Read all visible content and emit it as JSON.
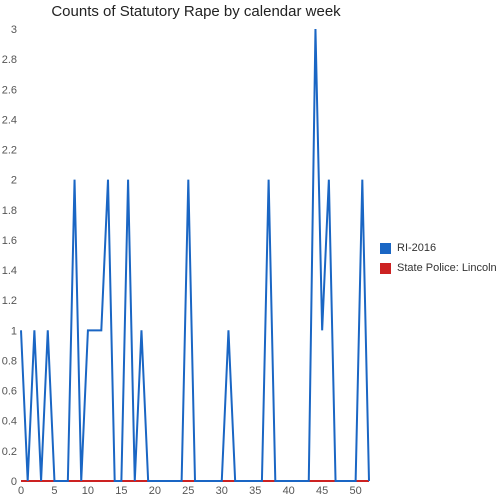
{
  "chart_data": {
    "type": "line",
    "title": "Counts of Statutory Rape by calendar week",
    "xlim": [
      0,
      52
    ],
    "ylim": [
      0,
      3
    ],
    "x_ticks": [
      0,
      5,
      10,
      15,
      20,
      25,
      30,
      35,
      40,
      45,
      50
    ],
    "y_ticks": [
      0,
      0.2,
      0.4,
      0.6,
      0.8,
      1,
      1.2,
      1.4,
      1.6,
      1.8,
      2,
      2.2,
      2.4,
      2.6,
      2.8,
      3
    ],
    "x_tick_labels": [
      "0",
      "5",
      "10",
      "15",
      "20",
      "25",
      "30",
      "35",
      "40",
      "45",
      "50"
    ],
    "y_tick_labels": [
      "0",
      "0.2",
      "0.4",
      "0.6",
      "0.8",
      "1",
      "1.2",
      "1.4",
      "1.6",
      "1.8",
      "2",
      "2.2",
      "2.4",
      "2.6",
      "2.8",
      "3"
    ],
    "grid": false,
    "legend_position": "right",
    "x": [
      0,
      1,
      2,
      3,
      4,
      5,
      6,
      7,
      8,
      9,
      10,
      11,
      12,
      13,
      14,
      15,
      16,
      17,
      18,
      19,
      20,
      21,
      22,
      23,
      24,
      25,
      26,
      27,
      28,
      29,
      30,
      31,
      32,
      33,
      34,
      35,
      36,
      37,
      38,
      39,
      40,
      41,
      42,
      43,
      44,
      45,
      46,
      47,
      48,
      49,
      50,
      51,
      52
    ],
    "series": [
      {
        "name": "RI-2016",
        "color": "#1a66c4",
        "values": [
          1,
          0,
          1,
          0,
          1,
          0,
          0,
          0,
          2,
          0,
          1,
          1,
          1,
          2,
          0,
          0,
          2,
          0,
          1,
          0,
          0,
          0,
          0,
          0,
          0,
          2,
          0,
          0,
          0,
          0,
          0,
          1,
          0,
          0,
          0,
          0,
          0,
          2,
          0,
          0,
          0,
          0,
          0,
          0,
          3,
          1,
          2,
          0,
          0,
          0,
          0,
          2,
          0
        ]
      },
      {
        "name": "State Police: Lincoln",
        "color": "#cc2222",
        "values": [
          0,
          0,
          0,
          0,
          0,
          0,
          0,
          0,
          0,
          0,
          0,
          0,
          0,
          0,
          0,
          0,
          0,
          0,
          0,
          0,
          0,
          0,
          0,
          0,
          0,
          0,
          0,
          0,
          0,
          0,
          0,
          0,
          0,
          0,
          0,
          0,
          0,
          0,
          0,
          0,
          0,
          0,
          0,
          0,
          0,
          0,
          0,
          0,
          0,
          0,
          0,
          0,
          0
        ]
      }
    ]
  }
}
